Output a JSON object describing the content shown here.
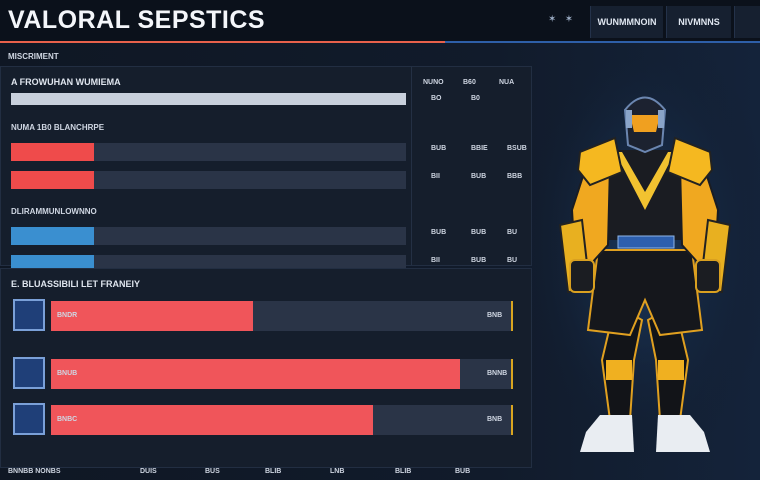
{
  "header": {
    "title": "VALORAL SEPSTICS",
    "tabs": [
      "WUNMMNOIN",
      "NIVMNNS"
    ],
    "subtitle": "MISCRIMENT"
  },
  "top_panel": {
    "heading": "A FROWUHAN WUMIEMA",
    "columns": [
      "NUNO",
      "B60",
      "NUA"
    ],
    "sections": [
      {
        "rows": [
          {
            "fill": 100,
            "color": "#c8d0dc",
            "stats": [
              "BO",
              "B0"
            ]
          }
        ]
      },
      {
        "title": "NUMA 1B0 BLANCHRPE",
        "rows": [
          {
            "fill": 21,
            "color": "#ef4b4b",
            "stats": [
              "BUB",
              "BBIE",
              "BSUB"
            ]
          },
          {
            "fill": 21,
            "color": "#ef4b4b",
            "stats": [
              "BII",
              "BUB",
              "BBB"
            ]
          }
        ]
      },
      {
        "title": "DLIRAMMUNLOWNNO",
        "rows": [
          {
            "fill": 21,
            "color": "#3a8fd0",
            "stats": [
              "BUB",
              "BUB",
              "BU"
            ]
          },
          {
            "fill": 21,
            "color": "#3a8fd0",
            "stats": [
              "BII",
              "BUB",
              "BU"
            ]
          }
        ]
      }
    ]
  },
  "bottom_panel": {
    "heading": "E. BLUASSIBILI LET FRANEIY",
    "rows": [
      {
        "label": "BNDR",
        "fill": 44,
        "value": "BNB"
      },
      {
        "label": "BNUB",
        "fill": 89,
        "value": "BNNB"
      },
      {
        "label": "BNBC",
        "fill": 70,
        "value": "BNB"
      }
    ]
  },
  "footer": [
    "BNNBB NONBS",
    "DUIS",
    "BUS",
    "BLIB",
    "LNB",
    "BLIB",
    "BUB"
  ]
}
